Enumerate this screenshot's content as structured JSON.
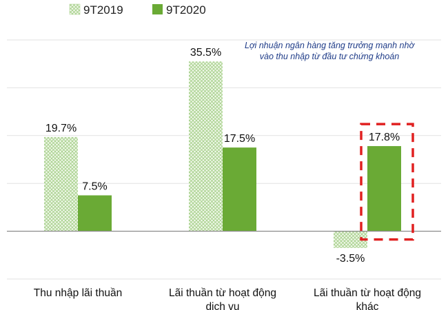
{
  "chart_data": {
    "type": "bar",
    "categories": [
      [
        "Thu nhập lãi thuần"
      ],
      [
        "Lãi thuần từ hoạt động",
        "dịch vụ"
      ],
      [
        "Lãi thuần từ hoạt động",
        "khác"
      ]
    ],
    "series": [
      {
        "name": "9T2019",
        "values": [
          19.7,
          35.5,
          -3.5
        ],
        "labels": [
          "19.7%",
          "35.5%",
          "-3.5%"
        ],
        "color": "#a9d18e",
        "pattern": "crosshatch"
      },
      {
        "name": "9T2020",
        "values": [
          7.5,
          17.5,
          17.8
        ],
        "labels": [
          "7.5%",
          "17.5%",
          "17.8%"
        ],
        "color": "#6aaa35",
        "pattern": "solid"
      }
    ],
    "ylim": [
      -10,
      40
    ],
    "grid": true,
    "legend": "top-left",
    "annotation": [
      "Lợi nhuận ngân hàng tăng trưởng mạnh nhờ",
      "vào thu nhập từ đầu tư chứng khoán"
    ],
    "highlight": {
      "category_index": 2,
      "color": "#e02020",
      "style": "dashed"
    },
    "colors": {
      "grid": "#e2e2e2",
      "axis": "#8a8a8a",
      "annotation": "#1f3c88"
    }
  }
}
